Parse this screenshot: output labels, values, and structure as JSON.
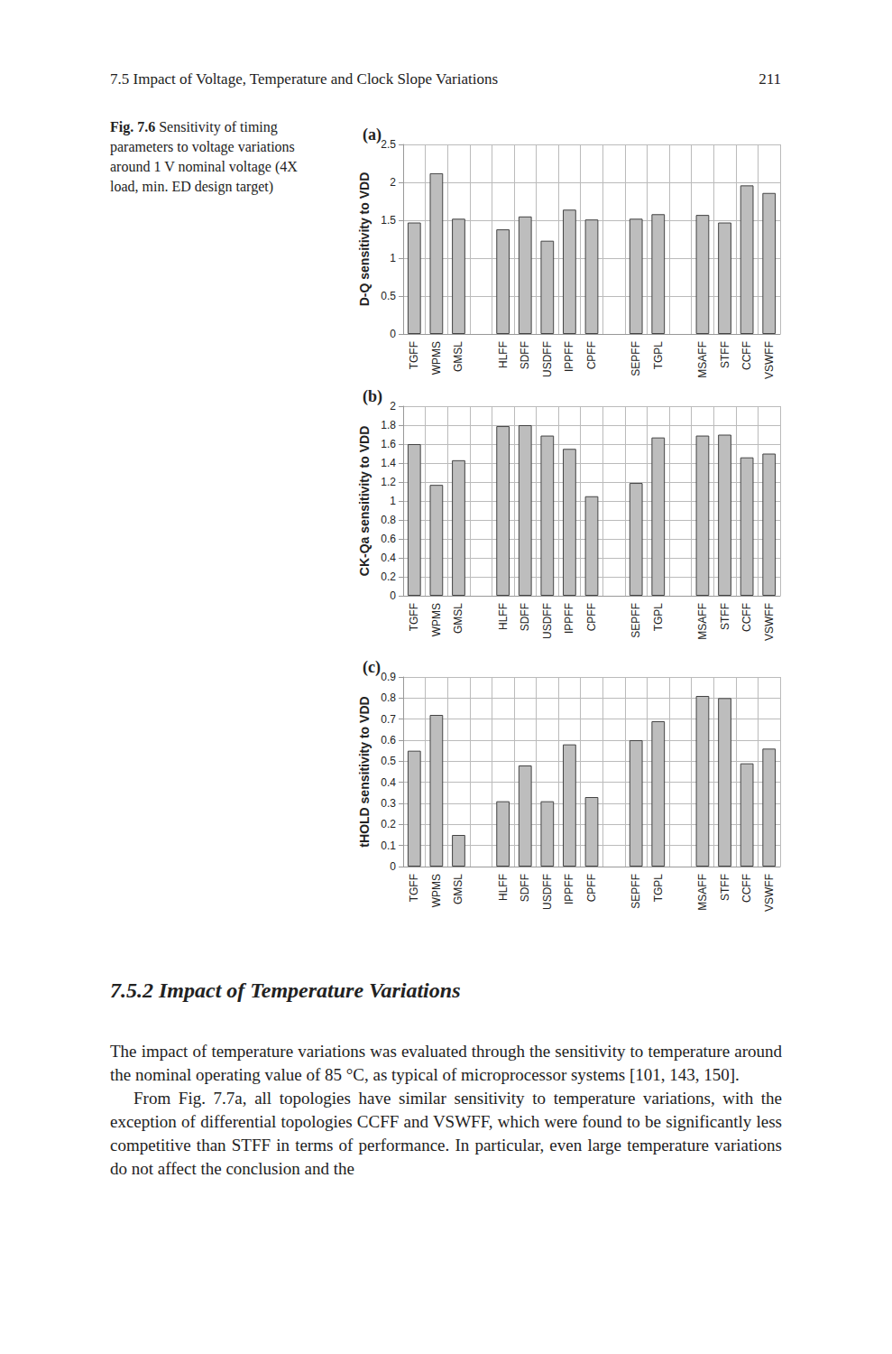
{
  "page": {
    "header": "7.5 Impact of Voltage, Temperature and Clock Slope Variations",
    "page_number": "211",
    "caption": {
      "label": "Fig. 7.6",
      "text": "Sensitivity of timing parameters to voltage variations around 1 V nominal voltage (4X load, min. ED design target)"
    },
    "heading": "7.5.2 Impact of Temperature Variations",
    "paragraphs": [
      "The impact of temperature variations was evaluated through the sensitivity to temperature around the nominal operating value of 85 °C, as typical of microprocessor systems [101, 143, 150].",
      "From Fig. 7.7a, all topologies have similar sensitivity to temperature variations, with the exception of differential topologies CCFF and VSWFF, which were found to be significantly less competitive than STFF in terms of performance. In particular, even large temperature variations do not affect the conclusion and the"
    ]
  },
  "chart_data": [
    {
      "type": "bar",
      "title": "(a)",
      "y_label": "D-Q sensitivity to VDD",
      "color": "#bdbdbd",
      "grid": true,
      "categories": [
        "TGFF",
        "WPMS",
        "GMSL",
        null,
        "HLFF",
        "SDFF",
        "USDFF",
        "IPPFF",
        "CPFF",
        null,
        "SEPFF",
        "TGPL",
        null,
        "MSAFF",
        "STFF",
        "CCFF",
        "VSWFF"
      ],
      "values": [
        1.47,
        2.12,
        1.52,
        null,
        1.38,
        1.55,
        1.23,
        1.64,
        1.51,
        null,
        1.52,
        1.58,
        null,
        1.57,
        1.47,
        1.96,
        1.86
      ],
      "ylim": [
        0,
        2.5
      ],
      "yticks": [
        0,
        0.5,
        1,
        1.5,
        2,
        2.5
      ]
    },
    {
      "type": "bar",
      "title": "(b)",
      "y_label": "CK-Qa sensitivity to VDD",
      "color": "#bdbdbd",
      "grid": true,
      "categories": [
        "TGFF",
        "WPMS",
        "GMSL",
        null,
        "HLFF",
        "SDFF",
        "USDFF",
        "IPPFF",
        "CPFF",
        null,
        "SEPFF",
        "TGPL",
        null,
        "MSAFF",
        "STFF",
        "CCFF",
        "VSWFF"
      ],
      "values": [
        1.6,
        1.17,
        1.43,
        null,
        1.79,
        1.8,
        1.69,
        1.55,
        1.05,
        null,
        1.19,
        1.67,
        null,
        1.69,
        1.7,
        1.46,
        1.5
      ],
      "ylim": [
        0,
        2
      ],
      "yticks": [
        0,
        0.2,
        0.4,
        0.6,
        0.8,
        1,
        1.2,
        1.4,
        1.6,
        1.8,
        2
      ]
    },
    {
      "type": "bar",
      "title": "(c)",
      "y_label": "tHOLD sensitivity to VDD",
      "color": "#bdbdbd",
      "grid": true,
      "categories": [
        "TGFF",
        "WPMS",
        "GMSL",
        null,
        "HLFF",
        "SDFF",
        "USDFF",
        "IPPFF",
        "CPFF",
        null,
        "SEPFF",
        "TGPL",
        null,
        "MSAFF",
        "STFF",
        "CCFF",
        "VSWFF"
      ],
      "values": [
        0.55,
        0.72,
        0.15,
        null,
        0.31,
        0.48,
        0.31,
        0.58,
        0.33,
        null,
        0.6,
        0.69,
        null,
        0.81,
        0.8,
        0.49,
        0.56
      ],
      "ylim": [
        0,
        0.9
      ],
      "yticks": [
        0,
        0.1,
        0.2,
        0.3,
        0.4,
        0.5,
        0.6,
        0.7,
        0.8,
        0.9
      ]
    }
  ]
}
